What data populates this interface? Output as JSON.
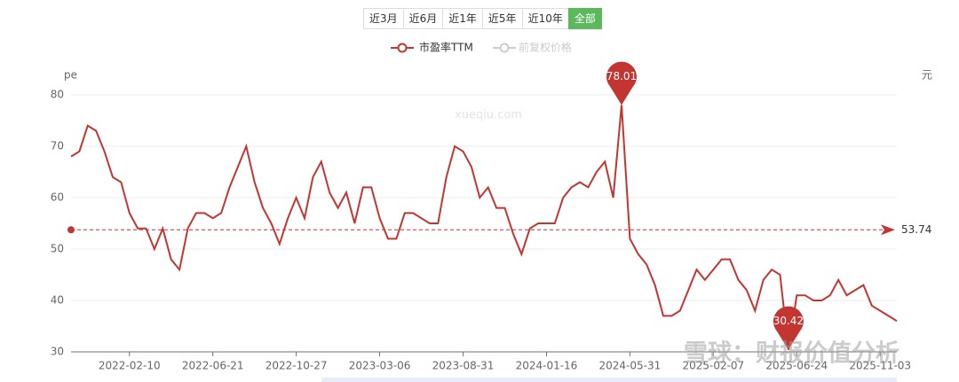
{
  "range_buttons": [
    "近3月",
    "近6月",
    "近1年",
    "近5年",
    "近10年",
    "全部"
  ],
  "chart_data": {
    "type": "line",
    "y_axis_label": "pe",
    "y2_axis_label": "元",
    "categories": [
      null,
      null,
      null,
      null,
      null,
      null,
      null,
      "2022-02-10",
      null,
      null,
      null,
      null,
      null,
      null,
      null,
      null,
      null,
      "2022-06-21",
      null,
      null,
      null,
      null,
      null,
      null,
      null,
      null,
      null,
      "2022-10-27",
      null,
      null,
      null,
      null,
      null,
      null,
      null,
      null,
      null,
      "2023-03-06",
      null,
      null,
      null,
      null,
      null,
      null,
      null,
      null,
      null,
      "2023-08-31",
      null,
      null,
      null,
      null,
      null,
      null,
      null,
      null,
      null,
      "2024-01-16",
      null,
      null,
      null,
      null,
      null,
      null,
      null,
      null,
      null,
      "2024-05-31",
      null,
      null,
      null,
      null,
      null,
      null,
      null,
      null,
      null,
      "2025-02-07",
      null,
      null,
      null,
      null,
      null,
      null,
      null,
      null,
      null,
      "2025-06-24",
      null,
      null,
      null,
      null,
      null,
      null,
      null,
      null,
      null,
      "2025-11-03",
      null,
      null
    ],
    "series": [
      {
        "name": "市盈率TTM",
        "color": "#c23531",
        "values": [
          68,
          69,
          74,
          73,
          69,
          64,
          63,
          57,
          54,
          54,
          50,
          54,
          48,
          46,
          54,
          57,
          57,
          56,
          57,
          62,
          66,
          70,
          63,
          58,
          55,
          51,
          56,
          60,
          56,
          64,
          67,
          61,
          58,
          61,
          55,
          62,
          62,
          56,
          52,
          52,
          57,
          57,
          56,
          55,
          55,
          64,
          70,
          69,
          66,
          60,
          62,
          58,
          58,
          53,
          49,
          54,
          55,
          55,
          55,
          60,
          62,
          63,
          62,
          65,
          67,
          60,
          78.01,
          52,
          49,
          47,
          43,
          37,
          37,
          38,
          42,
          46,
          44,
          46,
          48,
          48,
          44,
          42,
          38,
          44,
          46,
          45,
          30.42,
          41,
          41,
          40,
          40,
          41,
          44,
          41,
          42,
          43,
          39,
          38,
          37,
          36
        ]
      }
    ],
    "hidden_series": {
      "name": "前复权价格",
      "color": "#cccccc"
    },
    "max_point_index_path": "chart_data.series.0.values.66",
    "min_point_index_path": "chart_data.series.0.values.86",
    "average_line": {
      "value": 53.74,
      "label": "53.74"
    },
    "ylim": [
      30,
      80
    ],
    "yticks": [
      30,
      40,
      50,
      60,
      70,
      80
    ],
    "grid": true,
    "watermarks": [
      "xueqiu.com",
      "雪球：财报价值分析"
    ]
  }
}
